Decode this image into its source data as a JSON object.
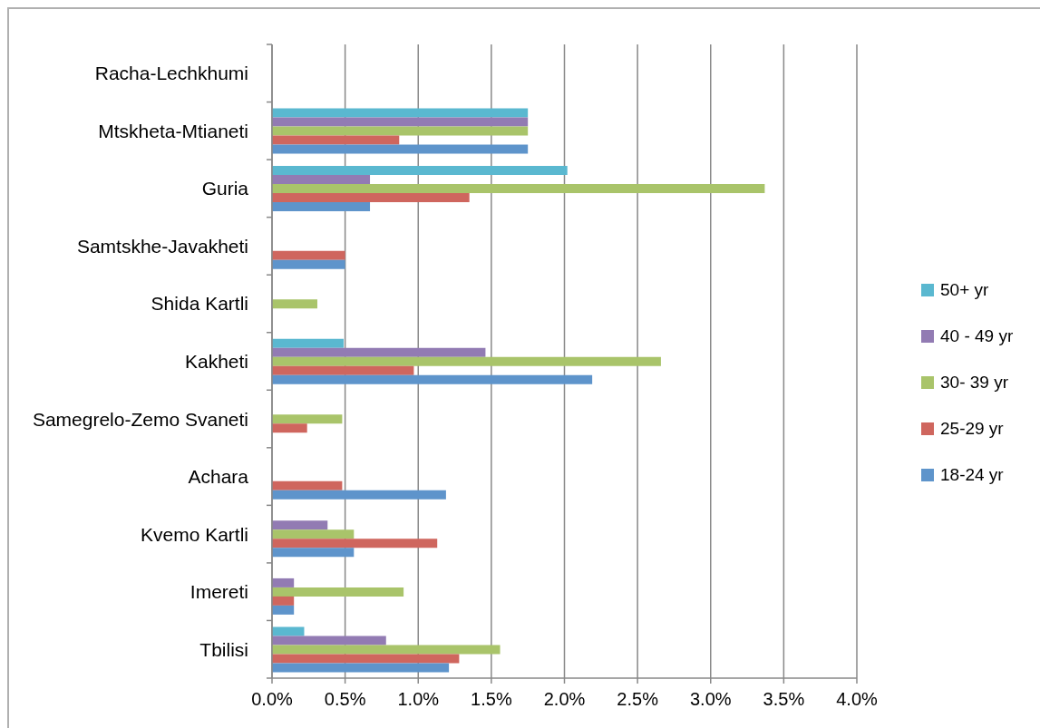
{
  "chart_data": {
    "type": "bar",
    "orientation": "horizontal",
    "categories": [
      "Racha-Lechkhumi",
      "Mtskheta-Mtianeti",
      "Guria",
      "Samtskhe-Javakheti",
      "Shida Kartli",
      "Kakheti",
      "Samegrelo-Zemo Svaneti",
      "Achara",
      "Kvemo Kartli",
      "Imereti",
      "Tbilisi"
    ],
    "series": [
      {
        "name": "50+ yr",
        "color": "#5ab8d0",
        "values": [
          null,
          1.75,
          2.02,
          null,
          null,
          0.49,
          null,
          null,
          null,
          null,
          0.22
        ]
      },
      {
        "name": "40 - 49 yr",
        "color": "#927bb3",
        "values": [
          null,
          1.75,
          0.67,
          null,
          null,
          1.46,
          null,
          null,
          0.38,
          0.15,
          0.78
        ]
      },
      {
        "name": "30- 39 yr",
        "color": "#a9c46a",
        "values": [
          null,
          1.75,
          3.37,
          null,
          0.31,
          2.66,
          0.48,
          null,
          0.56,
          0.9,
          1.56
        ]
      },
      {
        "name": "25-29 yr",
        "color": "#cf665e",
        "values": [
          null,
          0.87,
          1.35,
          0.5,
          null,
          0.97,
          0.24,
          0.48,
          1.13,
          0.15,
          1.28
        ]
      },
      {
        "name": "18-24 yr",
        "color": "#5e94cb",
        "values": [
          null,
          1.75,
          0.67,
          0.5,
          null,
          2.19,
          null,
          1.19,
          0.56,
          0.15,
          1.21
        ]
      }
    ],
    "xlim": [
      0,
      4
    ],
    "xticks": [
      {
        "value": 0,
        "label": "0.0%"
      },
      {
        "value": 0.5,
        "label": "0.5%"
      },
      {
        "value": 1,
        "label": "1.0%"
      },
      {
        "value": 1.5,
        "label": "1.5%"
      },
      {
        "value": 2,
        "label": "2.0%"
      },
      {
        "value": 2.5,
        "label": "2.5%"
      },
      {
        "value": 3,
        "label": "3.0%"
      },
      {
        "value": 3.5,
        "label": "3.5%"
      },
      {
        "value": 4,
        "label": "4.0%"
      }
    ],
    "grid": "x",
    "legend": "right"
  }
}
